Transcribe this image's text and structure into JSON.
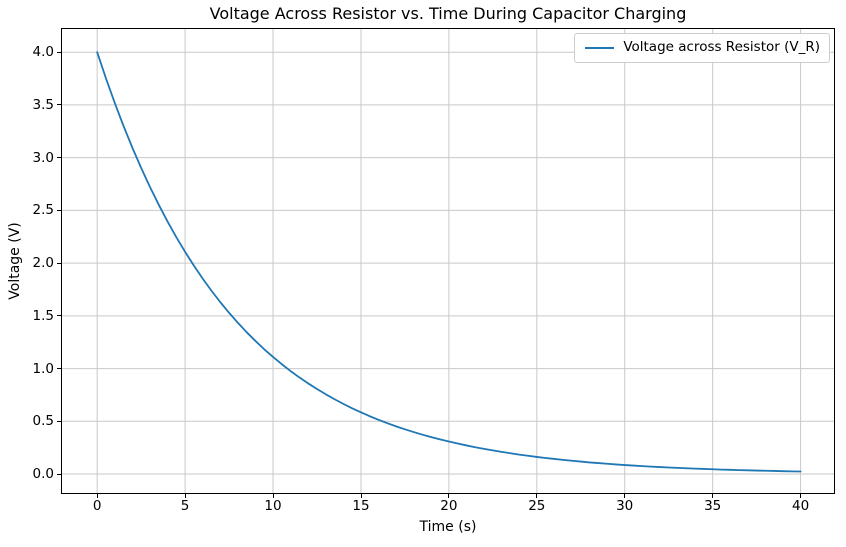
{
  "figure": {
    "title": "Voltage Across Resistor vs. Time During Capacitor Charging",
    "xlabel": "Time (s)",
    "ylabel": "Voltage (V)",
    "legend_label": "Voltage across Resistor (V_R)"
  },
  "colors": {
    "line": "#1f77b4",
    "grid": "#c9c9c9",
    "spine": "#000000",
    "legend_border": "#cccccc",
    "background": "#ffffff",
    "text": "#000000"
  },
  "chart_data": {
    "type": "line",
    "title": "Voltage Across Resistor vs. Time During Capacitor Charging",
    "xlabel": "Time (s)",
    "ylabel": "Voltage (V)",
    "grid": true,
    "legend_position": "upper right",
    "xlim": [
      -2,
      41.9
    ],
    "ylim": [
      -0.18,
      4.22
    ],
    "xticks": [
      0,
      5,
      10,
      15,
      20,
      25,
      30,
      35,
      40
    ],
    "xtick_labels": [
      "0",
      "5",
      "10",
      "15",
      "20",
      "25",
      "30",
      "35",
      "40"
    ],
    "yticks": [
      0.0,
      0.5,
      1.0,
      1.5,
      2.0,
      2.5,
      3.0,
      3.5,
      4.0
    ],
    "ytick_labels": [
      "0.0",
      "0.5",
      "1.0",
      "1.5",
      "2.0",
      "2.5",
      "3.0",
      "3.5",
      "4.0"
    ],
    "series": [
      {
        "name": "Voltage across Resistor (V_R)",
        "color": "#1f77b4",
        "model": "V(t) = 4.0 * exp(-t / 7.8)",
        "x": [
          0,
          0.5,
          1,
          1.5,
          2,
          2.5,
          3,
          3.5,
          4,
          4.5,
          5,
          5.5,
          6,
          6.5,
          7,
          7.5,
          8,
          8.5,
          9,
          9.5,
          10,
          10.5,
          11,
          11.5,
          12,
          12.5,
          13,
          13.5,
          14,
          14.5,
          15,
          15.5,
          16,
          16.5,
          17,
          17.5,
          18,
          18.5,
          19,
          19.5,
          20,
          20.5,
          21,
          21.5,
          22,
          22.5,
          23,
          23.5,
          24,
          24.5,
          25,
          25.5,
          26,
          26.5,
          27,
          27.5,
          28,
          28.5,
          29,
          29.5,
          30,
          30.5,
          31,
          31.5,
          32,
          32.5,
          33,
          33.5,
          34,
          34.5,
          35,
          35.5,
          36,
          36.5,
          37,
          37.5,
          38,
          38.5,
          39,
          39.5,
          40
        ],
        "y": [
          4.0,
          3.752,
          3.519,
          3.3,
          3.095,
          2.903,
          2.723,
          2.554,
          2.395,
          2.246,
          2.107,
          1.976,
          1.853,
          1.738,
          1.63,
          1.529,
          1.434,
          1.345,
          1.262,
          1.183,
          1.11,
          1.041,
          0.976,
          0.916,
          0.859,
          0.806,
          0.756,
          0.709,
          0.665,
          0.623,
          0.585,
          0.548,
          0.514,
          0.482,
          0.452,
          0.424,
          0.398,
          0.373,
          0.35,
          0.328,
          0.308,
          0.289,
          0.271,
          0.254,
          0.238,
          0.224,
          0.21,
          0.197,
          0.184,
          0.173,
          0.162,
          0.152,
          0.143,
          0.134,
          0.126,
          0.118,
          0.11,
          0.104,
          0.097,
          0.091,
          0.085,
          0.08,
          0.075,
          0.07,
          0.066,
          0.062,
          0.058,
          0.055,
          0.051,
          0.048,
          0.045,
          0.042,
          0.04,
          0.037,
          0.035,
          0.033,
          0.031,
          0.029,
          0.027,
          0.025,
          0.024
        ]
      }
    ]
  }
}
